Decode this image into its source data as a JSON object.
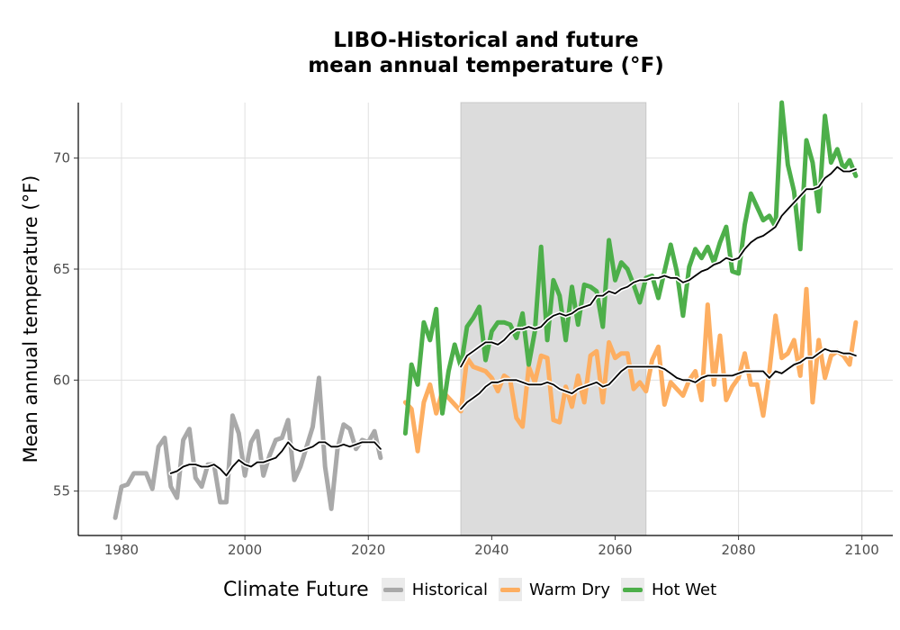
{
  "chart_data": {
    "type": "line",
    "title_lines": [
      "LIBO-Historical and future",
      "mean annual temperature (°F)"
    ],
    "xlabel": "",
    "ylabel": "Mean annual temperature (°F)",
    "xlim": [
      1973,
      2105
    ],
    "ylim": [
      53,
      72.5
    ],
    "x_ticks": [
      1980,
      2000,
      2020,
      2040,
      2060,
      2080,
      2100
    ],
    "y_ticks": [
      55,
      60,
      65,
      70
    ],
    "grid": true,
    "shaded_period": [
      2035,
      2065
    ],
    "legend": {
      "title": "Climate Future",
      "position": "bottom",
      "entries": [
        {
          "label": "Historical",
          "color": "#a9a9a9"
        },
        {
          "label": "Warm Dry",
          "color": "#fdae61"
        },
        {
          "label": "Hot Wet",
          "color": "#4daf4a"
        }
      ]
    },
    "series": [
      {
        "name": "Historical",
        "color": "#a9a9a9",
        "x": [
          1979,
          1980,
          1981,
          1982,
          1983,
          1984,
          1985,
          1986,
          1987,
          1988,
          1989,
          1990,
          1991,
          1992,
          1993,
          1994,
          1995,
          1996,
          1997,
          1998,
          1999,
          2000,
          2001,
          2002,
          2003,
          2004,
          2005,
          2006,
          2007,
          2008,
          2009,
          2010,
          2011,
          2012,
          2013,
          2014,
          2015,
          2016,
          2017,
          2018,
          2019,
          2020,
          2021,
          2022
        ],
        "y": [
          53.8,
          55.2,
          55.3,
          55.8,
          55.8,
          55.8,
          55.1,
          57.0,
          57.4,
          55.2,
          54.7,
          57.3,
          57.8,
          55.6,
          55.2,
          56.2,
          56.2,
          54.5,
          54.5,
          58.4,
          57.6,
          55.7,
          57.2,
          57.7,
          55.7,
          56.6,
          57.3,
          57.4,
          58.2,
          55.5,
          56.1,
          57.0,
          57.9,
          60.1,
          56.1,
          54.2,
          56.9,
          58.0,
          57.8,
          56.9,
          57.3,
          57.2,
          57.7,
          56.5
        ]
      },
      {
        "name": "Historical 10-yr mean",
        "color": "#000000",
        "x": [
          1988,
          1989,
          1990,
          1991,
          1992,
          1993,
          1994,
          1995,
          1996,
          1997,
          1998,
          1999,
          2000,
          2001,
          2002,
          2003,
          2004,
          2005,
          2006,
          2007,
          2008,
          2009,
          2010,
          2011,
          2012,
          2013,
          2014,
          2015,
          2016,
          2017,
          2018,
          2019,
          2020,
          2021,
          2022
        ],
        "y": [
          55.8,
          55.9,
          56.1,
          56.2,
          56.2,
          56.1,
          56.1,
          56.2,
          56.0,
          55.7,
          56.1,
          56.4,
          56.2,
          56.1,
          56.3,
          56.3,
          56.4,
          56.5,
          56.8,
          57.2,
          56.9,
          56.8,
          56.9,
          57.0,
          57.2,
          57.2,
          57.0,
          57.0,
          57.1,
          57.0,
          57.1,
          57.2,
          57.2,
          57.2,
          56.9
        ]
      },
      {
        "name": "Warm Dry",
        "color": "#fdae61",
        "x": [
          2026,
          2027,
          2028,
          2029,
          2030,
          2031,
          2032,
          2033,
          2034,
          2035,
          2036,
          2037,
          2038,
          2039,
          2040,
          2041,
          2042,
          2043,
          2044,
          2045,
          2046,
          2047,
          2048,
          2049,
          2050,
          2051,
          2052,
          2053,
          2054,
          2055,
          2056,
          2057,
          2058,
          2059,
          2060,
          2061,
          2062,
          2063,
          2064,
          2065,
          2066,
          2067,
          2068,
          2069,
          2070,
          2071,
          2072,
          2073,
          2074,
          2075,
          2076,
          2077,
          2078,
          2079,
          2080,
          2081,
          2082,
          2083,
          2084,
          2085,
          2086,
          2087,
          2088,
          2089,
          2090,
          2091,
          2092,
          2093,
          2094,
          2095,
          2096,
          2097,
          2098,
          2099
        ],
        "y": [
          59.0,
          58.7,
          56.8,
          59.0,
          59.8,
          58.5,
          59.5,
          59.2,
          58.9,
          58.6,
          61.0,
          60.6,
          60.5,
          60.4,
          60.1,
          59.5,
          60.2,
          60.0,
          58.3,
          57.9,
          60.6,
          59.9,
          61.1,
          61.0,
          58.2,
          58.1,
          59.7,
          58.8,
          60.2,
          59.0,
          61.1,
          61.3,
          59.0,
          61.7,
          61.0,
          61.2,
          61.2,
          59.6,
          59.9,
          59.5,
          60.9,
          61.5,
          58.9,
          59.9,
          59.6,
          59.3,
          60.0,
          60.4,
          59.1,
          63.4,
          59.8,
          62.0,
          59.1,
          59.7,
          60.1,
          61.2,
          59.8,
          59.8,
          58.4,
          60.4,
          62.9,
          61.0,
          61.2,
          61.8,
          60.2,
          64.1,
          59.0,
          61.8,
          60.1,
          61.1,
          61.3,
          61.1,
          60.7,
          62.6
        ]
      },
      {
        "name": "Warm Dry 30-yr mean",
        "color": "#000000",
        "x": [
          2035,
          2036,
          2037,
          2038,
          2039,
          2040,
          2041,
          2042,
          2043,
          2044,
          2045,
          2046,
          2047,
          2048,
          2049,
          2050,
          2051,
          2052,
          2053,
          2054,
          2055,
          2056,
          2057,
          2058,
          2059,
          2060,
          2061,
          2062,
          2063,
          2064,
          2065,
          2066,
          2067,
          2068,
          2069,
          2070,
          2071,
          2072,
          2073,
          2074,
          2075,
          2076,
          2077,
          2078,
          2079,
          2080,
          2081,
          2082,
          2083,
          2084,
          2085,
          2086,
          2087,
          2088,
          2089,
          2090,
          2091,
          2092,
          2093,
          2094,
          2095,
          2096,
          2097,
          2098,
          2099
        ],
        "y": [
          58.7,
          59.0,
          59.2,
          59.4,
          59.7,
          59.9,
          59.9,
          60.0,
          60.0,
          60.0,
          59.9,
          59.8,
          59.8,
          59.8,
          59.9,
          59.8,
          59.6,
          59.5,
          59.4,
          59.6,
          59.7,
          59.8,
          59.9,
          59.7,
          59.8,
          60.1,
          60.4,
          60.6,
          60.6,
          60.6,
          60.6,
          60.6,
          60.6,
          60.5,
          60.3,
          60.1,
          60.0,
          60.0,
          59.9,
          60.1,
          60.2,
          60.2,
          60.2,
          60.2,
          60.2,
          60.3,
          60.4,
          60.4,
          60.4,
          60.4,
          60.1,
          60.4,
          60.3,
          60.5,
          60.7,
          60.8,
          61.0,
          61.0,
          61.2,
          61.4,
          61.3,
          61.3,
          61.2,
          61.2,
          61.1
        ]
      },
      {
        "name": "Hot Wet",
        "color": "#4daf4a",
        "x": [
          2026,
          2027,
          2028,
          2029,
          2030,
          2031,
          2032,
          2033,
          2034,
          2035,
          2036,
          2037,
          2038,
          2039,
          2040,
          2041,
          2042,
          2043,
          2044,
          2045,
          2046,
          2047,
          2048,
          2049,
          2050,
          2051,
          2052,
          2053,
          2054,
          2055,
          2056,
          2057,
          2058,
          2059,
          2060,
          2061,
          2062,
          2063,
          2064,
          2065,
          2066,
          2067,
          2068,
          2069,
          2070,
          2071,
          2072,
          2073,
          2074,
          2075,
          2076,
          2077,
          2078,
          2079,
          2080,
          2081,
          2082,
          2083,
          2084,
          2085,
          2086,
          2087,
          2088,
          2089,
          2090,
          2091,
          2092,
          2093,
          2094,
          2095,
          2096,
          2097,
          2098,
          2099
        ],
        "y": [
          57.6,
          60.7,
          59.8,
          62.6,
          61.8,
          63.2,
          58.5,
          60.4,
          61.6,
          60.6,
          62.4,
          62.8,
          63.3,
          60.9,
          62.2,
          62.6,
          62.6,
          62.5,
          61.9,
          63.0,
          60.7,
          62.2,
          66.0,
          61.8,
          64.5,
          63.8,
          61.8,
          64.2,
          62.5,
          64.3,
          64.2,
          64.0,
          62.4,
          66.3,
          64.5,
          65.3,
          65.0,
          64.3,
          63.5,
          64.6,
          64.7,
          63.7,
          64.9,
          66.1,
          64.9,
          62.9,
          65.1,
          65.9,
          65.5,
          66.0,
          65.3,
          66.2,
          66.9,
          64.9,
          64.8,
          67.0,
          68.4,
          67.8,
          67.2,
          67.4,
          66.9,
          72.5,
          69.7,
          68.5,
          65.9,
          70.8,
          69.8,
          67.6,
          71.9,
          69.8,
          70.4,
          69.5,
          69.9,
          69.2
        ]
      },
      {
        "name": "Hot Wet 30-yr mean",
        "color": "#000000",
        "x": [
          2035,
          2036,
          2037,
          2038,
          2039,
          2040,
          2041,
          2042,
          2043,
          2044,
          2045,
          2046,
          2047,
          2048,
          2049,
          2050,
          2051,
          2052,
          2053,
          2054,
          2055,
          2056,
          2057,
          2058,
          2059,
          2060,
          2061,
          2062,
          2063,
          2064,
          2065,
          2066,
          2067,
          2068,
          2069,
          2070,
          2071,
          2072,
          2073,
          2074,
          2075,
          2076,
          2077,
          2078,
          2079,
          2080,
          2081,
          2082,
          2083,
          2084,
          2085,
          2086,
          2087,
          2088,
          2089,
          2090,
          2091,
          2092,
          2093,
          2094,
          2095,
          2096,
          2097,
          2098,
          2099
        ],
        "y": [
          60.6,
          61.1,
          61.3,
          61.5,
          61.7,
          61.7,
          61.6,
          61.8,
          62.1,
          62.3,
          62.3,
          62.4,
          62.3,
          62.4,
          62.7,
          62.9,
          63.0,
          62.9,
          63.0,
          63.2,
          63.3,
          63.4,
          63.8,
          63.8,
          64.0,
          63.9,
          64.1,
          64.2,
          64.4,
          64.5,
          64.5,
          64.6,
          64.6,
          64.7,
          64.6,
          64.6,
          64.4,
          64.5,
          64.7,
          64.9,
          65.0,
          65.2,
          65.3,
          65.5,
          65.4,
          65.5,
          65.9,
          66.2,
          66.4,
          66.5,
          66.7,
          66.9,
          67.4,
          67.7,
          68.0,
          68.3,
          68.6,
          68.6,
          68.7,
          69.1,
          69.3,
          69.6,
          69.4,
          69.4,
          69.5
        ]
      }
    ]
  }
}
